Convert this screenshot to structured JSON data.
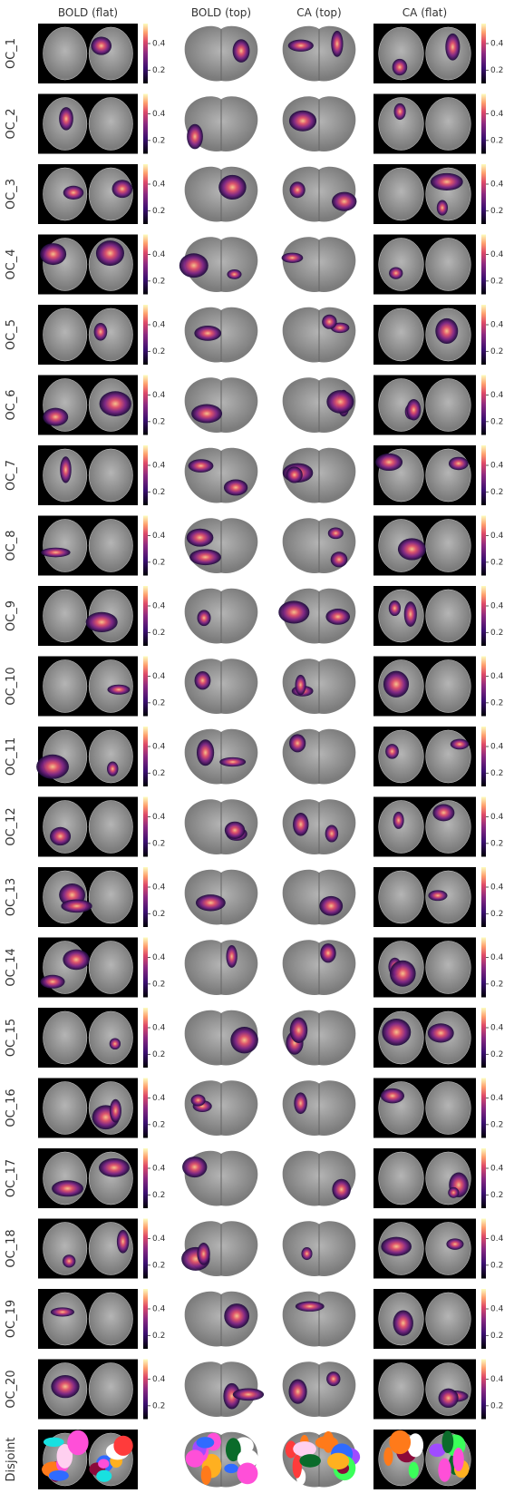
{
  "columns": [
    "BOLD (flat)",
    "BOLD (top)",
    "CA (top)",
    "CA (flat)"
  ],
  "rows": [
    "OC_1",
    "OC_2",
    "OC_3",
    "OC_4",
    "OC_5",
    "OC_6",
    "OC_7",
    "OC_8",
    "OC_9",
    "OC_10",
    "OC_11",
    "OC_12",
    "OC_13",
    "OC_14",
    "OC_15",
    "OC_16",
    "OC_17",
    "OC_18",
    "OC_19",
    "OC_20",
    "Disjoint"
  ],
  "colorbar": {
    "lim": [
      0.1,
      0.55
    ],
    "ticks": [
      0.2,
      0.4
    ]
  }
}
